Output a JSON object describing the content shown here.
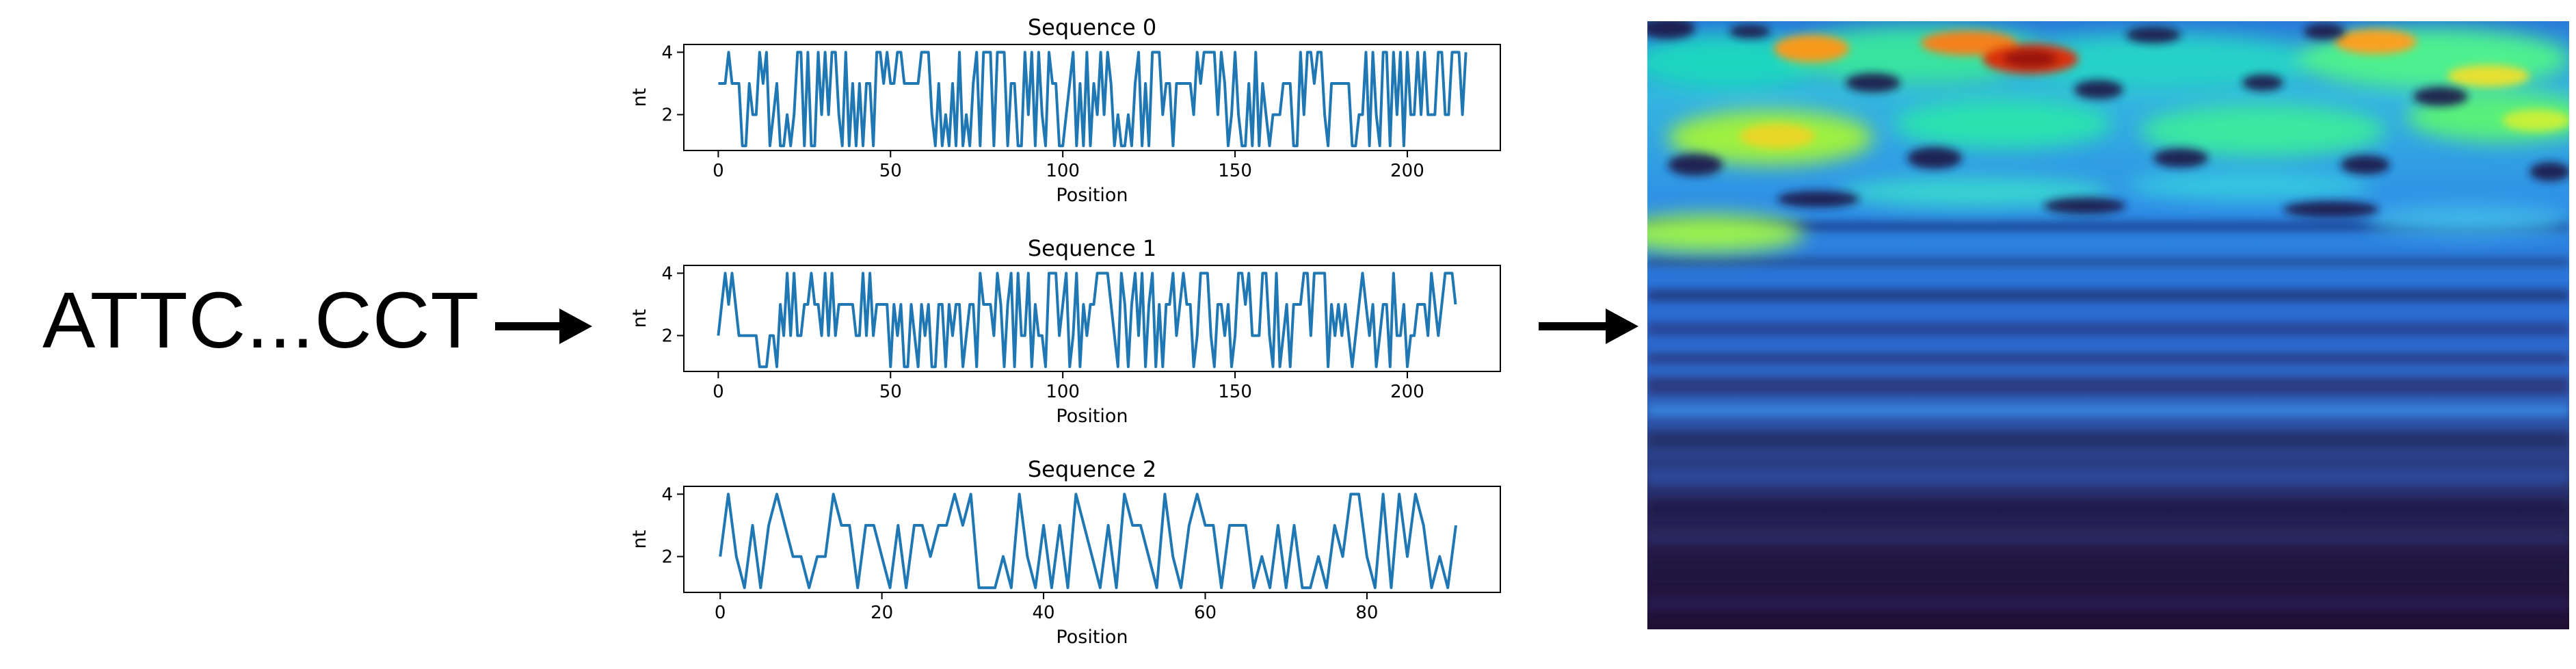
{
  "input_sequence": "ATTC...CCT",
  "chart_data": [
    {
      "type": "line",
      "title": "Sequence 0",
      "xlabel": "Position",
      "ylabel": "nt",
      "xlim": [
        -10,
        227
      ],
      "ylim": [
        0.85,
        4.25
      ],
      "xticks": [
        0,
        50,
        100,
        150,
        200
      ],
      "yticks": [
        2,
        4
      ],
      "series": [
        {
          "values": [
            3,
            3,
            3,
            4,
            3,
            3,
            3,
            1,
            1,
            3,
            2,
            2,
            4,
            3,
            4,
            1,
            2,
            3,
            1,
            1,
            2,
            1,
            2,
            4,
            4,
            1,
            4,
            1,
            1,
            4,
            2,
            4,
            2,
            4,
            4,
            2,
            1,
            4,
            1,
            3,
            1,
            3,
            1,
            3,
            3,
            1,
            4,
            4,
            3,
            4,
            3,
            3,
            4,
            4,
            3,
            3,
            3,
            3,
            3,
            4,
            4,
            4,
            2,
            1,
            3,
            1,
            2,
            1,
            3,
            1,
            4,
            1,
            2,
            1,
            3,
            4,
            1,
            4,
            4,
            4,
            1,
            4,
            4,
            4,
            1,
            3,
            3,
            1,
            1,
            4,
            2,
            4,
            1,
            4,
            2,
            1,
            4,
            3,
            3,
            1,
            1,
            2,
            3,
            4,
            1,
            3,
            1,
            4,
            1,
            3,
            2,
            4,
            2,
            4,
            3,
            1,
            2,
            1,
            1,
            2,
            1,
            3,
            4,
            1,
            3,
            1,
            4,
            4,
            4,
            2,
            3,
            3,
            1,
            3,
            3,
            3,
            3,
            3,
            2,
            4,
            3,
            4,
            4,
            4,
            4,
            2,
            4,
            3,
            1,
            2,
            4,
            2,
            1,
            1,
            3,
            1,
            4,
            1,
            3,
            2,
            1,
            2,
            2,
            2,
            3,
            3,
            3,
            1,
            1,
            4,
            2,
            4,
            4,
            3,
            4,
            4,
            2,
            1,
            3,
            3,
            3,
            3,
            3,
            3,
            1,
            1,
            2,
            2,
            4,
            1,
            4,
            2,
            1,
            4,
            4,
            1,
            4,
            2,
            4,
            1,
            4,
            2,
            2,
            4,
            2,
            4,
            2,
            2,
            2,
            4,
            4,
            2,
            2,
            4,
            4,
            4,
            2,
            4
          ]
        }
      ]
    },
    {
      "type": "line",
      "title": "Sequence 1",
      "xlabel": "Position",
      "ylabel": "nt",
      "xlim": [
        -10,
        227
      ],
      "ylim": [
        0.85,
        4.25
      ],
      "xticks": [
        0,
        50,
        100,
        150,
        200
      ],
      "yticks": [
        2,
        4
      ],
      "series": [
        {
          "values": [
            2,
            3,
            4,
            3,
            4,
            3,
            2,
            2,
            2,
            2,
            2,
            2,
            1,
            1,
            1,
            2,
            2,
            1,
            3,
            2,
            4,
            2,
            4,
            2,
            2,
            3,
            3,
            4,
            3,
            3,
            2,
            4,
            2,
            4,
            2,
            3,
            3,
            3,
            3,
            3,
            2,
            2,
            4,
            2,
            4,
            2,
            3,
            3,
            3,
            3,
            1,
            3,
            2,
            3,
            1,
            1,
            3,
            2,
            1,
            3,
            2,
            3,
            1,
            1,
            3,
            3,
            1,
            3,
            2,
            3,
            3,
            1,
            2,
            3,
            3,
            1,
            4,
            3,
            3,
            3,
            2,
            4,
            3,
            1,
            3,
            4,
            1,
            4,
            2,
            2,
            4,
            1,
            3,
            2,
            2,
            1,
            4,
            4,
            4,
            2,
            3,
            4,
            1,
            2,
            4,
            1,
            3,
            2,
            3,
            3,
            4,
            4,
            4,
            4,
            3,
            2,
            1,
            4,
            3,
            1,
            3,
            4,
            2,
            4,
            1,
            3,
            4,
            1,
            3,
            1,
            3,
            3,
            4,
            2,
            3,
            4,
            3,
            3,
            1,
            2,
            4,
            4,
            4,
            2,
            1,
            3,
            3,
            2,
            3,
            1,
            2,
            4,
            4,
            3,
            4,
            2,
            2,
            2,
            4,
            4,
            2,
            1,
            4,
            1,
            2,
            3,
            1,
            3,
            3,
            3,
            4,
            4,
            2,
            4,
            4,
            4,
            4,
            1,
            3,
            2,
            3,
            2,
            3,
            2,
            1,
            2,
            3,
            4,
            3,
            2,
            3,
            1,
            2,
            3,
            3,
            1,
            4,
            2,
            2,
            3,
            1,
            2,
            2,
            3,
            3,
            3,
            2,
            4,
            3,
            2,
            3,
            4,
            4,
            4,
            3
          ]
        }
      ]
    },
    {
      "type": "line",
      "title": "Sequence 2",
      "xlabel": "Position",
      "ylabel": "nt",
      "xlim": [
        -4.5,
        96.5
      ],
      "ylim": [
        0.85,
        4.25
      ],
      "xticks": [
        0,
        20,
        40,
        60,
        80
      ],
      "yticks": [
        2,
        4
      ],
      "series": [
        {
          "values": [
            2,
            4,
            2,
            1,
            3,
            1,
            3,
            4,
            3,
            2,
            2,
            1,
            2,
            2,
            4,
            3,
            3,
            1,
            3,
            3,
            2,
            1,
            3,
            1,
            3,
            3,
            2,
            3,
            3,
            4,
            3,
            4,
            1,
            1,
            1,
            2,
            1,
            4,
            2,
            1,
            3,
            1,
            3,
            1,
            4,
            3,
            2,
            1,
            3,
            1,
            4,
            3,
            3,
            2,
            1,
            4,
            2,
            1,
            3,
            4,
            3,
            3,
            1,
            3,
            3,
            3,
            1,
            2,
            1,
            3,
            1,
            3,
            1,
            1,
            2,
            1,
            3,
            2,
            4,
            4,
            2,
            1,
            4,
            1,
            4,
            2,
            4,
            3,
            1,
            2,
            1,
            3
          ]
        }
      ]
    }
  ],
  "image_output": {
    "type": "heatmap",
    "colormap": "turbo"
  }
}
